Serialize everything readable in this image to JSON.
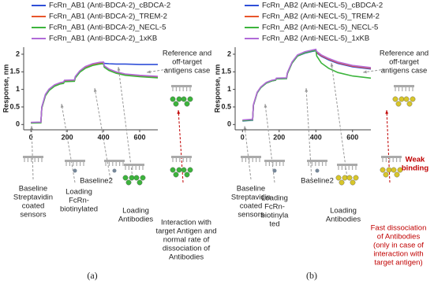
{
  "chart_data": [
    {
      "type": "line",
      "panel_label": "(a)",
      "ylabel": "Response, nm",
      "x": [
        0,
        55,
        60,
        80,
        100,
        130,
        160,
        180,
        185,
        240,
        245,
        270,
        300,
        340,
        380,
        400,
        405,
        430,
        470,
        520,
        600,
        700
      ],
      "series": [
        {
          "name": "FcRn_AB1 (Anti-BDCA-2)_cBDCA-2",
          "color": "#2f4fd8",
          "values": [
            0.05,
            0.06,
            0.5,
            0.85,
            1.0,
            1.12,
            1.18,
            1.2,
            1.25,
            1.26,
            1.36,
            1.52,
            1.64,
            1.72,
            1.76,
            1.77,
            1.74,
            1.73,
            1.72,
            1.72,
            1.71,
            1.71
          ]
        },
        {
          "name": "FcRn_AB1 (Anti-BDCA-2)_TREM-2",
          "color": "#e8552b",
          "values": [
            0.05,
            0.06,
            0.48,
            0.83,
            0.98,
            1.1,
            1.16,
            1.18,
            1.23,
            1.24,
            1.34,
            1.5,
            1.62,
            1.7,
            1.74,
            1.75,
            1.65,
            1.56,
            1.48,
            1.42,
            1.38,
            1.35
          ]
        },
        {
          "name": "FcRn_AB1 (Anti-BDCA-2)_NECL-5",
          "color": "#3cb43c",
          "values": [
            0.04,
            0.05,
            0.47,
            0.82,
            0.97,
            1.09,
            1.15,
            1.17,
            1.22,
            1.23,
            1.33,
            1.49,
            1.6,
            1.68,
            1.72,
            1.73,
            1.63,
            1.54,
            1.46,
            1.4,
            1.36,
            1.33
          ]
        },
        {
          "name": "FcRn_AB1 (Anti-BDCA-2)_1xKB",
          "color": "#b06ad8",
          "values": [
            0.06,
            0.07,
            0.5,
            0.86,
            1.01,
            1.13,
            1.19,
            1.21,
            1.26,
            1.27,
            1.37,
            1.53,
            1.65,
            1.73,
            1.77,
            1.78,
            1.67,
            1.58,
            1.5,
            1.44,
            1.4,
            1.37
          ]
        }
      ],
      "xlim": [
        -40,
        700
      ],
      "ylim": [
        -0.15,
        2.2
      ],
      "xticks": [
        0,
        200,
        400,
        600
      ],
      "yticks": [
        0,
        0.5,
        1,
        1.5,
        2
      ],
      "annotations": [
        {
          "lines": [
            "Baseline",
            "Streptavidin",
            "coated",
            "sensors"
          ]
        },
        {
          "lines": [
            "Loading",
            "FcRn-",
            "biotinylated"
          ]
        },
        {
          "lines": [
            "Baseline2"
          ]
        },
        {
          "lines": [
            "Loading",
            "Antibodies"
          ]
        },
        {
          "lines": [
            "Interaction with",
            "target Antigen and",
            "normal rate of",
            "dissociation of",
            "Antibodies"
          ]
        },
        {
          "lines": [
            "Reference and",
            "off-target",
            "antigens case"
          ]
        }
      ]
    },
    {
      "type": "line",
      "panel_label": "(b)",
      "ylabel": "Response, nm",
      "x": [
        0,
        55,
        60,
        80,
        100,
        130,
        160,
        180,
        185,
        240,
        245,
        270,
        300,
        340,
        380,
        400,
        405,
        430,
        470,
        520,
        600,
        700
      ],
      "series": [
        {
          "name": "FcRn_AB2 (Anti-NECL-5)_cBDCA-2",
          "color": "#2f4fd8",
          "values": [
            0.1,
            0.12,
            0.55,
            0.9,
            1.05,
            1.18,
            1.24,
            1.26,
            1.3,
            1.31,
            1.45,
            1.75,
            1.95,
            2.03,
            2.08,
            2.1,
            2.04,
            1.94,
            1.84,
            1.74,
            1.64,
            1.58
          ]
        },
        {
          "name": "FcRn_AB2 (Anti-NECL-5)_TREM-2",
          "color": "#e8552b",
          "values": [
            0.12,
            0.14,
            0.56,
            0.91,
            1.06,
            1.19,
            1.25,
            1.27,
            1.31,
            1.32,
            1.46,
            1.76,
            1.96,
            2.05,
            2.1,
            2.12,
            2.06,
            1.96,
            1.86,
            1.76,
            1.66,
            1.6
          ]
        },
        {
          "name": "FcRn_AB2 (Anti-NECL-5)_NECL-5",
          "color": "#3cb43c",
          "values": [
            0.11,
            0.13,
            0.55,
            0.9,
            1.05,
            1.18,
            1.24,
            1.26,
            1.3,
            1.31,
            1.45,
            1.75,
            1.95,
            2.04,
            2.09,
            2.11,
            1.95,
            1.75,
            1.6,
            1.48,
            1.38,
            1.32
          ]
        },
        {
          "name": "FcRn_AB2 (Anti-NECL-5)_1xKB",
          "color": "#b06ad8",
          "values": [
            0.13,
            0.15,
            0.57,
            0.92,
            1.07,
            1.2,
            1.26,
            1.28,
            1.32,
            1.33,
            1.48,
            1.78,
            1.98,
            2.07,
            2.12,
            2.14,
            2.08,
            1.98,
            1.88,
            1.78,
            1.68,
            1.62
          ]
        }
      ],
      "xlim": [
        -40,
        700
      ],
      "ylim": [
        -0.15,
        2.2
      ],
      "xticks": [
        0,
        200,
        400,
        600
      ],
      "yticks": [
        0,
        0.5,
        1,
        1.5,
        2
      ],
      "annotations": [
        {
          "lines": [
            "Baseline",
            "Streptavidin",
            "coated",
            "sensors"
          ]
        },
        {
          "lines": [
            "Loading",
            "FcRn-",
            "biotinyla",
            "ted"
          ]
        },
        {
          "lines": [
            "Baseline2"
          ]
        },
        {
          "lines": [
            "Loading",
            "Antibodies"
          ]
        },
        {
          "lines": [
            "Weak",
            "binding"
          ],
          "color": "#c00000"
        },
        {
          "lines": [
            "Fast dissociation",
            "of Antibodies",
            "(only in case of",
            "interaction with",
            "target antigen)"
          ],
          "color": "#c00000"
        },
        {
          "lines": [
            "Reference and",
            "off-target",
            "antigens case"
          ]
        }
      ]
    }
  ]
}
